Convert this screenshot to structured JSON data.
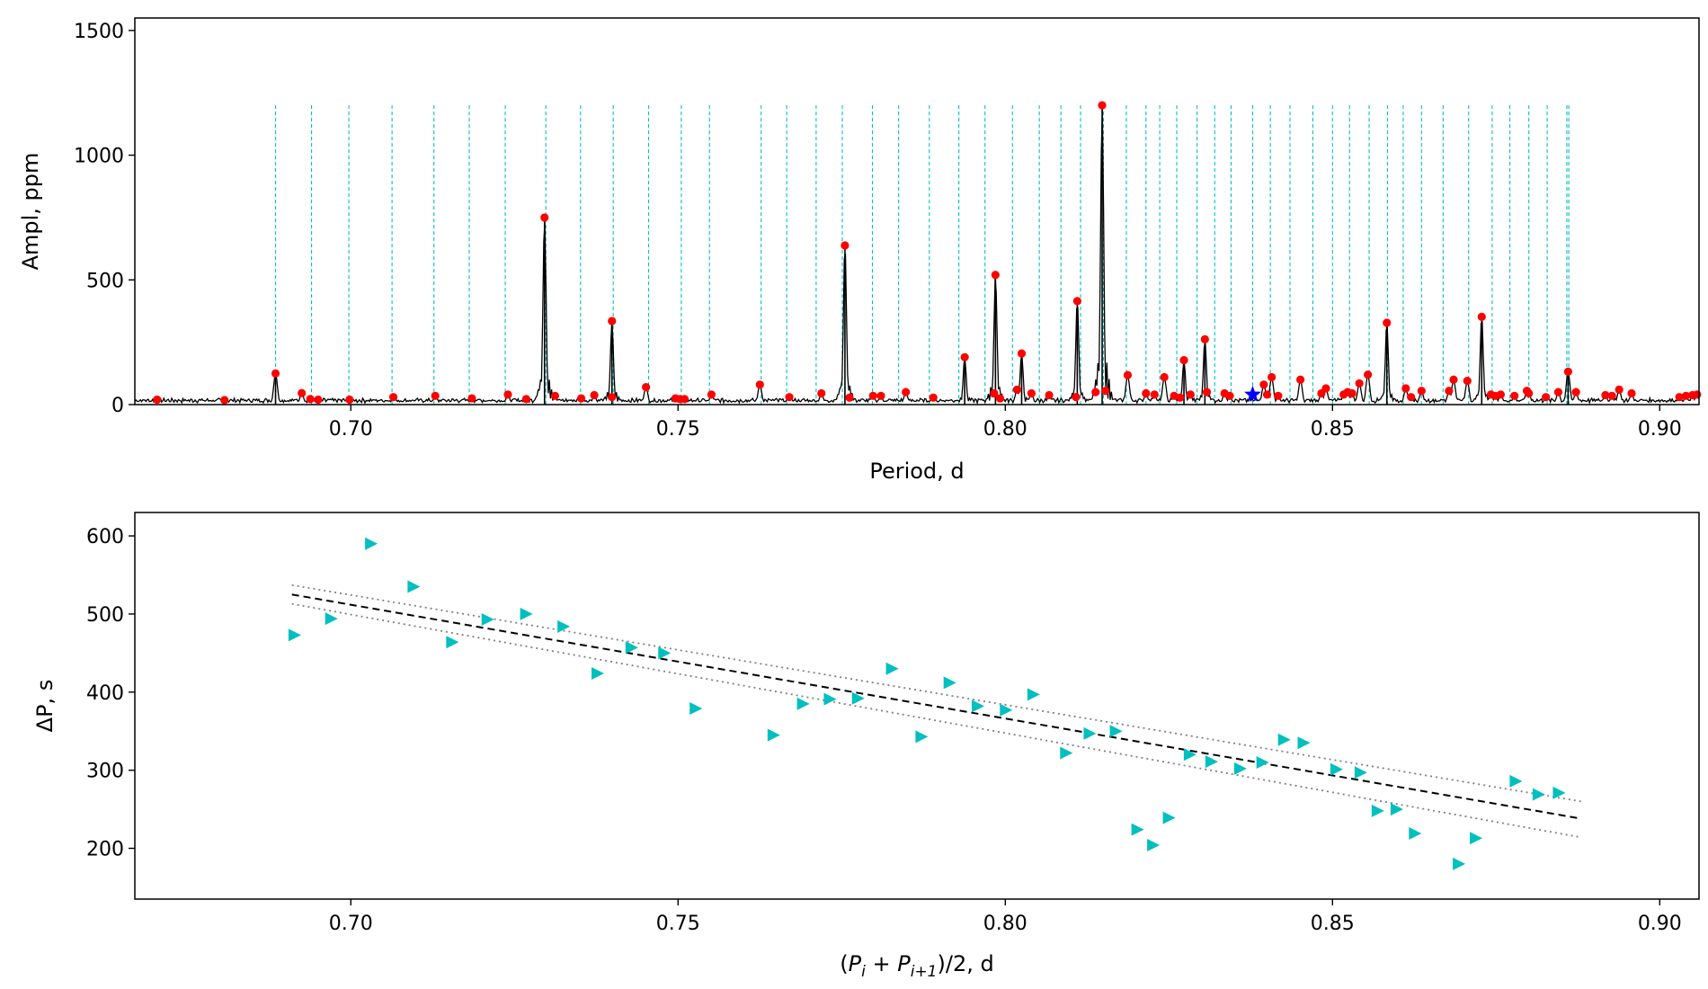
{
  "chart_data": [
    {
      "type": "line",
      "panel": "top",
      "title": "",
      "xlabel": "Period, d",
      "ylabel": "Ampl, ppm",
      "xlim": [
        0.667,
        0.906
      ],
      "ylim": [
        0,
        1550
      ],
      "xticks": [
        0.7,
        0.75,
        0.8,
        0.85,
        0.9
      ],
      "xtick_labels": [
        "0.70",
        "0.75",
        "0.80",
        "0.85",
        "0.90"
      ],
      "yticks": [
        0,
        500,
        1000,
        1500
      ],
      "ytick_labels": [
        "0",
        "500",
        "1000",
        "1500"
      ],
      "colors": {
        "spectrum": "#000000",
        "peaks": "#ff0000",
        "star": "#0000ff",
        "grid": "#00bfbf"
      },
      "comb_height": 1200,
      "comb_periods": [
        0.6885,
        0.694,
        0.6997,
        0.7063,
        0.7127,
        0.7181,
        0.7236,
        0.7298,
        0.7351,
        0.7401,
        0.7455,
        0.7505,
        0.7548,
        0.7627,
        0.7666,
        0.7711,
        0.7751,
        0.7797,
        0.7837,
        0.7884,
        0.7929,
        0.7969,
        0.8011,
        0.8052,
        0.8085,
        0.8115,
        0.815,
        0.8185,
        0.8215,
        0.8236,
        0.8262,
        0.8293,
        0.832,
        0.8345,
        0.8378,
        0.8405,
        0.8435,
        0.847,
        0.85,
        0.8526,
        0.8556,
        0.8584,
        0.8608,
        0.8636,
        0.8669,
        0.8708,
        0.8744,
        0.8771,
        0.88,
        0.8828,
        0.8858,
        0.8861
      ],
      "main_peaks": [
        {
          "period": 0.6885,
          "amp": 125
        },
        {
          "period": 0.7296,
          "amp": 750
        },
        {
          "period": 0.7399,
          "amp": 335
        },
        {
          "period": 0.7755,
          "amp": 638
        },
        {
          "period": 0.7938,
          "amp": 190
        },
        {
          "period": 0.7985,
          "amp": 520
        },
        {
          "period": 0.8025,
          "amp": 205
        },
        {
          "period": 0.811,
          "amp": 415
        },
        {
          "period": 0.8148,
          "amp": 1200
        },
        {
          "period": 0.8273,
          "amp": 178
        },
        {
          "period": 0.8305,
          "amp": 262
        },
        {
          "period": 0.8583,
          "amp": 328
        },
        {
          "period": 0.8728,
          "amp": 352
        },
        {
          "period": 0.886,
          "amp": 132
        }
      ],
      "minor_peaks": [
        {
          "period": 0.6704,
          "amp": 20
        },
        {
          "period": 0.6807,
          "amp": 18
        },
        {
          "period": 0.6925,
          "amp": 46
        },
        {
          "period": 0.6938,
          "amp": 22
        },
        {
          "period": 0.695,
          "amp": 20
        },
        {
          "period": 0.6998,
          "amp": 20
        },
        {
          "period": 0.7065,
          "amp": 30
        },
        {
          "period": 0.7129,
          "amp": 35
        },
        {
          "period": 0.7185,
          "amp": 25
        },
        {
          "period": 0.724,
          "amp": 40
        },
        {
          "period": 0.7268,
          "amp": 22
        },
        {
          "period": 0.7312,
          "amp": 35
        },
        {
          "period": 0.7352,
          "amp": 25
        },
        {
          "period": 0.7372,
          "amp": 38
        },
        {
          "period": 0.7399,
          "amp": 30
        },
        {
          "period": 0.7451,
          "amp": 70
        },
        {
          "period": 0.7496,
          "amp": 25
        },
        {
          "period": 0.7503,
          "amp": 22
        },
        {
          "period": 0.751,
          "amp": 22
        },
        {
          "period": 0.7551,
          "amp": 40
        },
        {
          "period": 0.7625,
          "amp": 80
        },
        {
          "period": 0.767,
          "amp": 30
        },
        {
          "period": 0.7719,
          "amp": 45
        },
        {
          "period": 0.7762,
          "amp": 28
        },
        {
          "period": 0.7798,
          "amp": 35
        },
        {
          "period": 0.781,
          "amp": 35
        },
        {
          "period": 0.7848,
          "amp": 50
        },
        {
          "period": 0.789,
          "amp": 28
        },
        {
          "period": 0.7983,
          "amp": 45
        },
        {
          "period": 0.7992,
          "amp": 25
        },
        {
          "period": 0.8018,
          "amp": 60
        },
        {
          "period": 0.804,
          "amp": 45
        },
        {
          "period": 0.8067,
          "amp": 38
        },
        {
          "period": 0.8108,
          "amp": 30
        },
        {
          "period": 0.8138,
          "amp": 50
        },
        {
          "period": 0.8153,
          "amp": 55
        },
        {
          "period": 0.8187,
          "amp": 118
        },
        {
          "period": 0.8215,
          "amp": 45
        },
        {
          "period": 0.8228,
          "amp": 40
        },
        {
          "period": 0.8243,
          "amp": 110
        },
        {
          "period": 0.8258,
          "amp": 35
        },
        {
          "period": 0.8267,
          "amp": 28
        },
        {
          "period": 0.8283,
          "amp": 40
        },
        {
          "period": 0.8308,
          "amp": 50
        },
        {
          "period": 0.8335,
          "amp": 45
        },
        {
          "period": 0.8343,
          "amp": 35
        },
        {
          "period": 0.8395,
          "amp": 80
        },
        {
          "period": 0.8407,
          "amp": 110
        },
        {
          "period": 0.84,
          "amp": 40
        },
        {
          "period": 0.8417,
          "amp": 35
        },
        {
          "period": 0.8451,
          "amp": 100
        },
        {
          "period": 0.849,
          "amp": 65
        },
        {
          "period": 0.8483,
          "amp": 45
        },
        {
          "period": 0.8517,
          "amp": 40
        },
        {
          "period": 0.8523,
          "amp": 50
        },
        {
          "period": 0.853,
          "amp": 45
        },
        {
          "period": 0.8541,
          "amp": 85
        },
        {
          "period": 0.8554,
          "amp": 120
        },
        {
          "period": 0.8612,
          "amp": 65
        },
        {
          "period": 0.862,
          "amp": 30
        },
        {
          "period": 0.8636,
          "amp": 55
        },
        {
          "period": 0.8678,
          "amp": 55
        },
        {
          "period": 0.8685,
          "amp": 100
        },
        {
          "period": 0.8706,
          "amp": 95
        },
        {
          "period": 0.8742,
          "amp": 40
        },
        {
          "period": 0.8749,
          "amp": 35
        },
        {
          "period": 0.8757,
          "amp": 40
        },
        {
          "period": 0.8778,
          "amp": 35
        },
        {
          "period": 0.88,
          "amp": 45
        },
        {
          "period": 0.8797,
          "amp": 55
        },
        {
          "period": 0.8826,
          "amp": 30
        },
        {
          "period": 0.8845,
          "amp": 50
        },
        {
          "period": 0.8872,
          "amp": 50
        },
        {
          "period": 0.8917,
          "amp": 38
        },
        {
          "period": 0.8927,
          "amp": 35
        },
        {
          "period": 0.8938,
          "amp": 60
        },
        {
          "period": 0.8957,
          "amp": 45
        },
        {
          "period": 0.903,
          "amp": 30
        },
        {
          "period": 0.904,
          "amp": 35
        },
        {
          "period": 0.905,
          "amp": 38
        },
        {
          "period": 0.9057,
          "amp": 40
        }
      ],
      "star_marker": {
        "period": 0.8378,
        "amp": 40
      }
    },
    {
      "type": "scatter",
      "panel": "bottom",
      "title": "",
      "xlabel": "(P_i + P_{i+1})/2, d",
      "xlabel_parts": {
        "open": "(",
        "p1": "P",
        "sub1": "i",
        "plus": " + ",
        "p2": "P",
        "sub2": "i+1",
        "tail": ")/2, d"
      },
      "ylabel": "ΔP, s",
      "xlim": [
        0.667,
        0.906
      ],
      "ylim": [
        135,
        630
      ],
      "xticks": [
        0.7,
        0.75,
        0.8,
        0.85,
        0.9
      ],
      "xtick_labels": [
        "0.70",
        "0.75",
        "0.80",
        "0.85",
        "0.90"
      ],
      "yticks": [
        200,
        300,
        400,
        500,
        600
      ],
      "ytick_labels": [
        "200",
        "300",
        "400",
        "500",
        "600"
      ],
      "colors": {
        "points": "#00bfbf",
        "fit": "#000000",
        "band": "#808080"
      },
      "points": [
        [
          0.6913,
          473
        ],
        [
          0.6969,
          494
        ],
        [
          0.703,
          590
        ],
        [
          0.7095,
          535
        ],
        [
          0.7154,
          464
        ],
        [
          0.7208,
          493
        ],
        [
          0.7267,
          500
        ],
        [
          0.7324,
          484
        ],
        [
          0.7376,
          424
        ],
        [
          0.7428,
          457
        ],
        [
          0.7478,
          450
        ],
        [
          0.7526,
          379
        ],
        [
          0.7645,
          345
        ],
        [
          0.769,
          385
        ],
        [
          0.7731,
          391
        ],
        [
          0.7774,
          392
        ],
        [
          0.7826,
          430
        ],
        [
          0.7871,
          343
        ],
        [
          0.7914,
          412
        ],
        [
          0.7957,
          382
        ],
        [
          0.8,
          377
        ],
        [
          0.8042,
          397
        ],
        [
          0.8092,
          322
        ],
        [
          0.8128,
          347
        ],
        [
          0.8168,
          350
        ],
        [
          0.8201,
          224
        ],
        [
          0.8225,
          204
        ],
        [
          0.8249,
          239
        ],
        [
          0.8281,
          320
        ],
        [
          0.8314,
          311
        ],
        [
          0.8358,
          302
        ],
        [
          0.8392,
          310
        ],
        [
          0.8425,
          339
        ],
        [
          0.8455,
          335
        ],
        [
          0.8505,
          301
        ],
        [
          0.8542,
          297
        ],
        [
          0.8568,
          248
        ],
        [
          0.8597,
          250
        ],
        [
          0.8625,
          219
        ],
        [
          0.8692,
          180
        ],
        [
          0.8718,
          213
        ],
        [
          0.8779,
          286
        ],
        [
          0.8814,
          269
        ],
        [
          0.8845,
          271
        ]
      ],
      "fit": {
        "x": [
          0.691,
          0.888
        ],
        "y": [
          525,
          238
        ]
      },
      "band_upper": {
        "x": [
          0.691,
          0.888
        ],
        "y": [
          537,
          260
        ]
      },
      "band_lower": {
        "x": [
          0.691,
          0.888
        ],
        "y": [
          513,
          214
        ]
      }
    }
  ]
}
